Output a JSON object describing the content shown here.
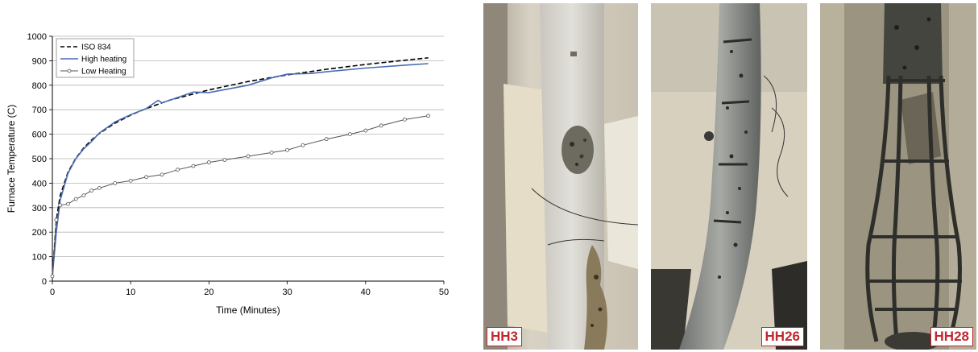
{
  "chart_data": {
    "type": "line",
    "title": "",
    "xlabel": "Time (Minutes)",
    "ylabel": "Furnace Temperature (C)",
    "xlim": [
      0,
      50
    ],
    "ylim": [
      0,
      1000
    ],
    "xticks": [
      "0",
      "10",
      "20",
      "30",
      "40",
      "50"
    ],
    "yticks": [
      "0",
      "100",
      "200",
      "300",
      "400",
      "500",
      "600",
      "700",
      "800",
      "900",
      "1000"
    ],
    "grid": "horizontal",
    "legend_position": "top-left",
    "series": [
      {
        "name": "ISO 834",
        "style": "dashed",
        "color": "#000000",
        "x": [
          0,
          0.5,
          1,
          2,
          3,
          4,
          5,
          6,
          8,
          10,
          12,
          15,
          20,
          25,
          30,
          35,
          40,
          45,
          48
        ],
        "values": [
          20,
          250,
          349,
          445,
          502,
          544,
          576,
          603,
          645,
          678,
          705,
          739,
          781,
          815,
          842,
          865,
          885,
          902,
          912
        ]
      },
      {
        "name": "High heating",
        "style": "solid",
        "color": "#4a6db5",
        "x": [
          0,
          0.5,
          1,
          2,
          3,
          4,
          5,
          6,
          8,
          10,
          12,
          13.5,
          14,
          16,
          18,
          20,
          22,
          25,
          28,
          30,
          33,
          35,
          40,
          45,
          48
        ],
        "values": [
          20,
          200,
          330,
          440,
          500,
          540,
          570,
          605,
          650,
          680,
          705,
          738,
          728,
          750,
          772,
          770,
          782,
          800,
          830,
          845,
          848,
          855,
          870,
          882,
          888
        ]
      },
      {
        "name": "Low Heating",
        "style": "marker-line",
        "color": "#555555",
        "x": [
          0,
          0.5,
          1,
          2,
          3,
          4,
          5,
          6,
          8,
          10,
          12,
          14,
          16,
          18,
          20,
          22,
          25,
          28,
          30,
          32,
          35,
          38,
          40,
          42,
          45,
          48
        ],
        "values": [
          20,
          250,
          310,
          315,
          335,
          350,
          370,
          380,
          400,
          410,
          425,
          435,
          455,
          470,
          485,
          495,
          510,
          525,
          535,
          555,
          580,
          600,
          615,
          635,
          660,
          675
        ]
      }
    ]
  },
  "photos": [
    {
      "label": "HH3",
      "icon": "spalled-column-photo"
    },
    {
      "label": "HH26",
      "icon": "spalled-column-photo"
    },
    {
      "label": "HH28",
      "icon": "exposed-rebar-cage-photo"
    }
  ]
}
